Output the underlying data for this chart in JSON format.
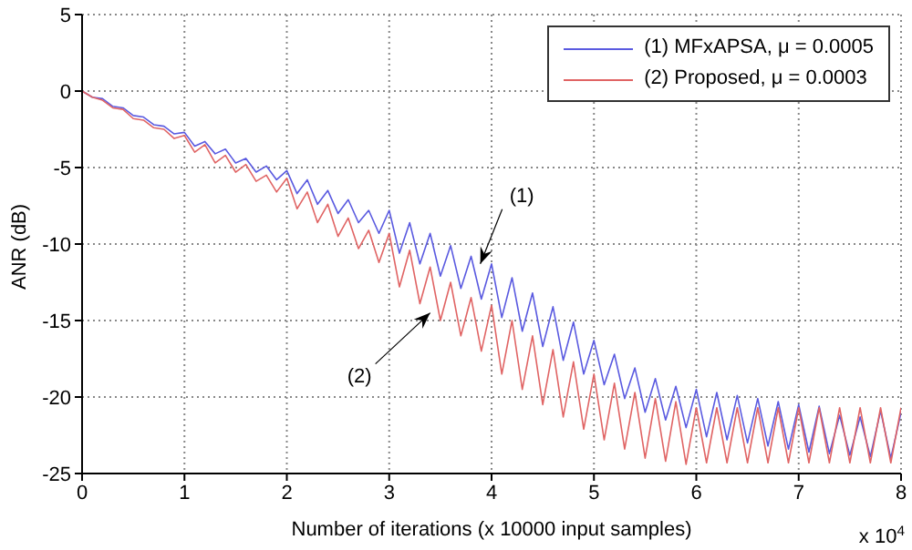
{
  "chart_data": {
    "type": "line",
    "xlabel": "Number of iterations (x 10000 input samples)",
    "ylabel": "ANR (dB)",
    "x": [
      0,
      0.1,
      0.2,
      0.3,
      0.4,
      0.5,
      0.6,
      0.7,
      0.8,
      0.9,
      1,
      1.1,
      1.2,
      1.3,
      1.4,
      1.5,
      1.6,
      1.7,
      1.8,
      1.9,
      2,
      2.1,
      2.2,
      2.3,
      2.4,
      2.5,
      2.6,
      2.7,
      2.8,
      2.9,
      3,
      3.1,
      3.2,
      3.3,
      3.4,
      3.5,
      3.6,
      3.7,
      3.8,
      3.9,
      4,
      4.1,
      4.2,
      4.3,
      4.4,
      4.5,
      4.6,
      4.7,
      4.8,
      4.9,
      5,
      5.1,
      5.2,
      5.3,
      5.4,
      5.5,
      5.6,
      5.7,
      5.8,
      5.9,
      6,
      6.1,
      6.2,
      6.3,
      6.4,
      6.5,
      6.6,
      6.7,
      6.8,
      6.9,
      7,
      7.1,
      7.2,
      7.3,
      7.4,
      7.5,
      7.6,
      7.7,
      7.8,
      7.9,
      8
    ],
    "series": [
      {
        "name": "(1) MFxAPSA, μ = 0.0005",
        "color": "#5a5ae0",
        "values": [
          0,
          -0.4,
          -0.5,
          -1.0,
          -1.1,
          -1.6,
          -1.7,
          -2.2,
          -2.3,
          -2.8,
          -2.7,
          -3.6,
          -3.3,
          -4.1,
          -3.8,
          -4.7,
          -4.4,
          -5.3,
          -4.9,
          -5.8,
          -5.2,
          -6.7,
          -5.8,
          -7.4,
          -6.5,
          -8.0,
          -7.1,
          -8.6,
          -7.8,
          -9.3,
          -7.8,
          -10.6,
          -8.6,
          -11.3,
          -9.3,
          -12.1,
          -10.1,
          -12.9,
          -10.8,
          -13.6,
          -11.3,
          -14.8,
          -12.2,
          -15.7,
          -13.2,
          -16.7,
          -14.1,
          -17.6,
          -15.1,
          -18.5,
          -16.3,
          -19.2,
          -17.2,
          -20.1,
          -18.1,
          -21.0,
          -18.8,
          -21.5,
          -19.3,
          -22.0,
          -19.5,
          -22.6,
          -19.7,
          -22.8,
          -19.9,
          -23.0,
          -20.1,
          -23.2,
          -20.3,
          -23.4,
          -20.5,
          -23.6,
          -20.6,
          -23.7,
          -21.2,
          -23.8,
          -21.3,
          -23.9,
          -20.9,
          -24.0,
          -21.0
        ]
      },
      {
        "name": "(2) Proposed, μ = 0.0003",
        "color": "#e06464",
        "values": [
          0,
          -0.4,
          -0.6,
          -1.1,
          -1.2,
          -1.8,
          -1.9,
          -2.4,
          -2.5,
          -3.1,
          -2.9,
          -4.0,
          -3.5,
          -4.7,
          -4.2,
          -5.3,
          -4.8,
          -5.9,
          -5.5,
          -6.6,
          -5.7,
          -7.7,
          -6.6,
          -8.6,
          -7.4,
          -9.5,
          -8.3,
          -10.3,
          -9.1,
          -11.2,
          -9.3,
          -12.8,
          -10.4,
          -13.9,
          -11.5,
          -15.0,
          -12.5,
          -16.0,
          -13.5,
          -17.0,
          -14.0,
          -18.5,
          -15.0,
          -19.5,
          -16.0,
          -20.5,
          -16.9,
          -21.3,
          -17.7,
          -22.1,
          -18.5,
          -22.8,
          -19.1,
          -23.4,
          -19.7,
          -24.0,
          -20.1,
          -24.2,
          -20.3,
          -24.4,
          -20.7,
          -24.3,
          -20.7,
          -24.3,
          -20.7,
          -24.3,
          -20.7,
          -24.3,
          -20.7,
          -24.3,
          -20.7,
          -24.3,
          -20.7,
          -24.3,
          -20.7,
          -24.3,
          -20.7,
          -24.3,
          -20.7,
          -24.3,
          -20.7
        ]
      }
    ],
    "xlim": [
      0,
      8
    ],
    "xticks": [
      0,
      1,
      2,
      3,
      4,
      5,
      6,
      7,
      8
    ],
    "ylim": [
      -25,
      5
    ],
    "yticks": [
      -25,
      -20,
      -15,
      -10,
      -5,
      0,
      5
    ],
    "grid": true,
    "legend": "top right",
    "marker": "none",
    "line_style": "solid",
    "annotations": [
      {
        "text": "(1)",
        "x": 3.89,
        "y": -11.3
      },
      {
        "text": "(2)",
        "x": 3.4,
        "y": -14.5
      },
      "x 10$^{4}$"
    ]
  }
}
